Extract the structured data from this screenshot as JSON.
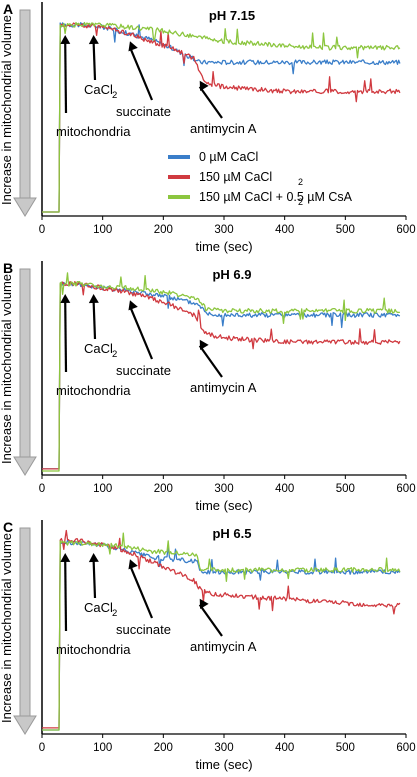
{
  "ylabel": "Increase in mitochondrial volume",
  "xlabel": "time (sec)",
  "colors": {
    "blue": "#3a7ec9",
    "red": "#d03a40",
    "green": "#8cc63f"
  },
  "legend": [
    "0 µM CaCl",
    "150 µM CaCl",
    "150 µM CaCl + 0.5 µM CsA"
  ],
  "annotations": {
    "mitochondria": "mitochondria",
    "cacl": "CaCl",
    "cacl_sub": "2",
    "succinate": "succinate",
    "antimycin": "antimycin A",
    "legend_sub": "2"
  },
  "chart_data": [
    {
      "type": "line",
      "panel": "A",
      "title": "pH 7.15",
      "xlabel": "time (sec)",
      "ylabel": "Increase in mitochondrial volume",
      "xlim": [
        0,
        600
      ],
      "x_ticks": [
        "0",
        "100",
        "200",
        "300",
        "400",
        "500",
        "600"
      ],
      "events": [
        {
          "label": "mitochondria",
          "x": 30
        },
        {
          "label": "CaCl2",
          "x": 85
        },
        {
          "label": "succinate",
          "x": 145
        },
        {
          "label": "antimycin A",
          "x": 260
        }
      ],
      "series": [
        {
          "name": "0 µM CaCl2",
          "color": "#3a7ec9",
          "x": [
            0,
            28,
            29,
            60,
            100,
            140,
            180,
            220,
            260,
            300,
            350,
            400,
            450,
            500,
            550,
            590
          ],
          "y": [
            0,
            0,
            90,
            90,
            89,
            86,
            83,
            78,
            72,
            72,
            72,
            72,
            72,
            72,
            72,
            72
          ]
        },
        {
          "name": "150 µM CaCl2",
          "color": "#d03a40",
          "x": [
            0,
            28,
            29,
            60,
            100,
            140,
            180,
            220,
            250,
            260,
            270,
            300,
            350,
            400,
            450,
            500,
            550,
            590
          ],
          "y": [
            0,
            0,
            90,
            90,
            89,
            86,
            82,
            78,
            74,
            68,
            62,
            60,
            59,
            58,
            58,
            58,
            58,
            58
          ]
        },
        {
          "name": "150 µM CaCl2 + 0.5 µM CsA",
          "color": "#8cc63f",
          "x": [
            0,
            28,
            29,
            60,
            100,
            140,
            180,
            220,
            260,
            300,
            350,
            400,
            450,
            500,
            550,
            590
          ],
          "y": [
            0,
            0,
            90,
            90,
            90,
            89,
            88,
            86,
            84,
            82,
            81,
            80,
            79,
            79,
            79,
            79
          ]
        }
      ]
    },
    {
      "type": "line",
      "panel": "B",
      "title": "pH 6.9",
      "xlabel": "time (sec)",
      "ylabel": "Increase in mitochondrial volume",
      "xlim": [
        0,
        600
      ],
      "x_ticks": [
        "0",
        "100",
        "200",
        "300",
        "400",
        "500",
        "600"
      ],
      "events": [
        {
          "label": "mitochondria",
          "x": 30
        },
        {
          "label": "CaCl2",
          "x": 85
        },
        {
          "label": "succinate",
          "x": 145
        },
        {
          "label": "antimycin A",
          "x": 260
        }
      ],
      "series": [
        {
          "name": "0 µM CaCl2",
          "color": "#3a7ec9",
          "x": [
            0,
            28,
            29,
            60,
            100,
            140,
            180,
            220,
            260,
            270,
            300,
            350,
            400,
            450,
            500,
            550,
            590
          ],
          "y": [
            1,
            1,
            90,
            90,
            88,
            87,
            85,
            83,
            80,
            76,
            75,
            75,
            75,
            75,
            75,
            75,
            75
          ]
        },
        {
          "name": "150 µM CaCl2",
          "color": "#d03a40",
          "x": [
            0,
            28,
            29,
            60,
            100,
            140,
            180,
            220,
            250,
            260,
            270,
            300,
            350,
            400,
            450,
            500,
            550,
            590
          ],
          "y": [
            1,
            1,
            90,
            90,
            88,
            86,
            83,
            79,
            75,
            70,
            66,
            64,
            63,
            62,
            62,
            62,
            62,
            62
          ]
        },
        {
          "name": "150 µM CaCl2 + 0.5 µM CsA",
          "color": "#8cc63f",
          "x": [
            0,
            28,
            29,
            60,
            100,
            140,
            180,
            220,
            260,
            270,
            300,
            350,
            400,
            450,
            500,
            550,
            590
          ],
          "y": [
            0,
            0,
            90,
            90,
            89,
            88,
            87,
            85,
            82,
            78,
            77,
            77,
            77,
            77,
            77,
            77,
            77
          ]
        }
      ]
    },
    {
      "type": "line",
      "panel": "C",
      "title": "pH 6.5",
      "xlabel": "time (sec)",
      "ylabel": "Increase in mitochondrial volume",
      "xlim": [
        0,
        600
      ],
      "x_ticks": [
        "0",
        "100",
        "200",
        "300",
        "400",
        "500",
        "600"
      ],
      "events": [
        {
          "label": "mitochondria",
          "x": 30
        },
        {
          "label": "CaCl2",
          "x": 85
        },
        {
          "label": "succinate",
          "x": 145
        },
        {
          "label": "antimycin A",
          "x": 260
        }
      ],
      "series": [
        {
          "name": "0 µM CaCl2",
          "color": "#3a7ec9",
          "x": [
            0,
            28,
            29,
            60,
            100,
            140,
            180,
            220,
            255,
            262,
            300,
            350,
            400,
            450,
            500,
            550,
            590
          ],
          "y": [
            0,
            0,
            90,
            90,
            89,
            86,
            83,
            82,
            81,
            76,
            76,
            76,
            76,
            76,
            76,
            76,
            76
          ]
        },
        {
          "name": "150 µM CaCl2",
          "color": "#d03a40",
          "x": [
            0,
            28,
            29,
            60,
            100,
            140,
            180,
            220,
            250,
            260,
            270,
            300,
            350,
            400,
            450,
            500,
            550,
            590
          ],
          "y": [
            1,
            1,
            91,
            91,
            89,
            86,
            81,
            76,
            72,
            68,
            66,
            65,
            64,
            63,
            62,
            61,
            60,
            60
          ]
        },
        {
          "name": "150 µM CaCl2 + 0.5 µM CsA",
          "color": "#8cc63f",
          "x": [
            0,
            28,
            29,
            60,
            100,
            140,
            180,
            220,
            255,
            262,
            300,
            350,
            400,
            450,
            500,
            550,
            590
          ],
          "y": [
            0,
            0,
            90,
            90,
            89,
            88,
            86,
            85,
            84,
            77,
            77,
            77,
            77,
            77,
            77,
            77,
            77
          ]
        }
      ]
    }
  ]
}
